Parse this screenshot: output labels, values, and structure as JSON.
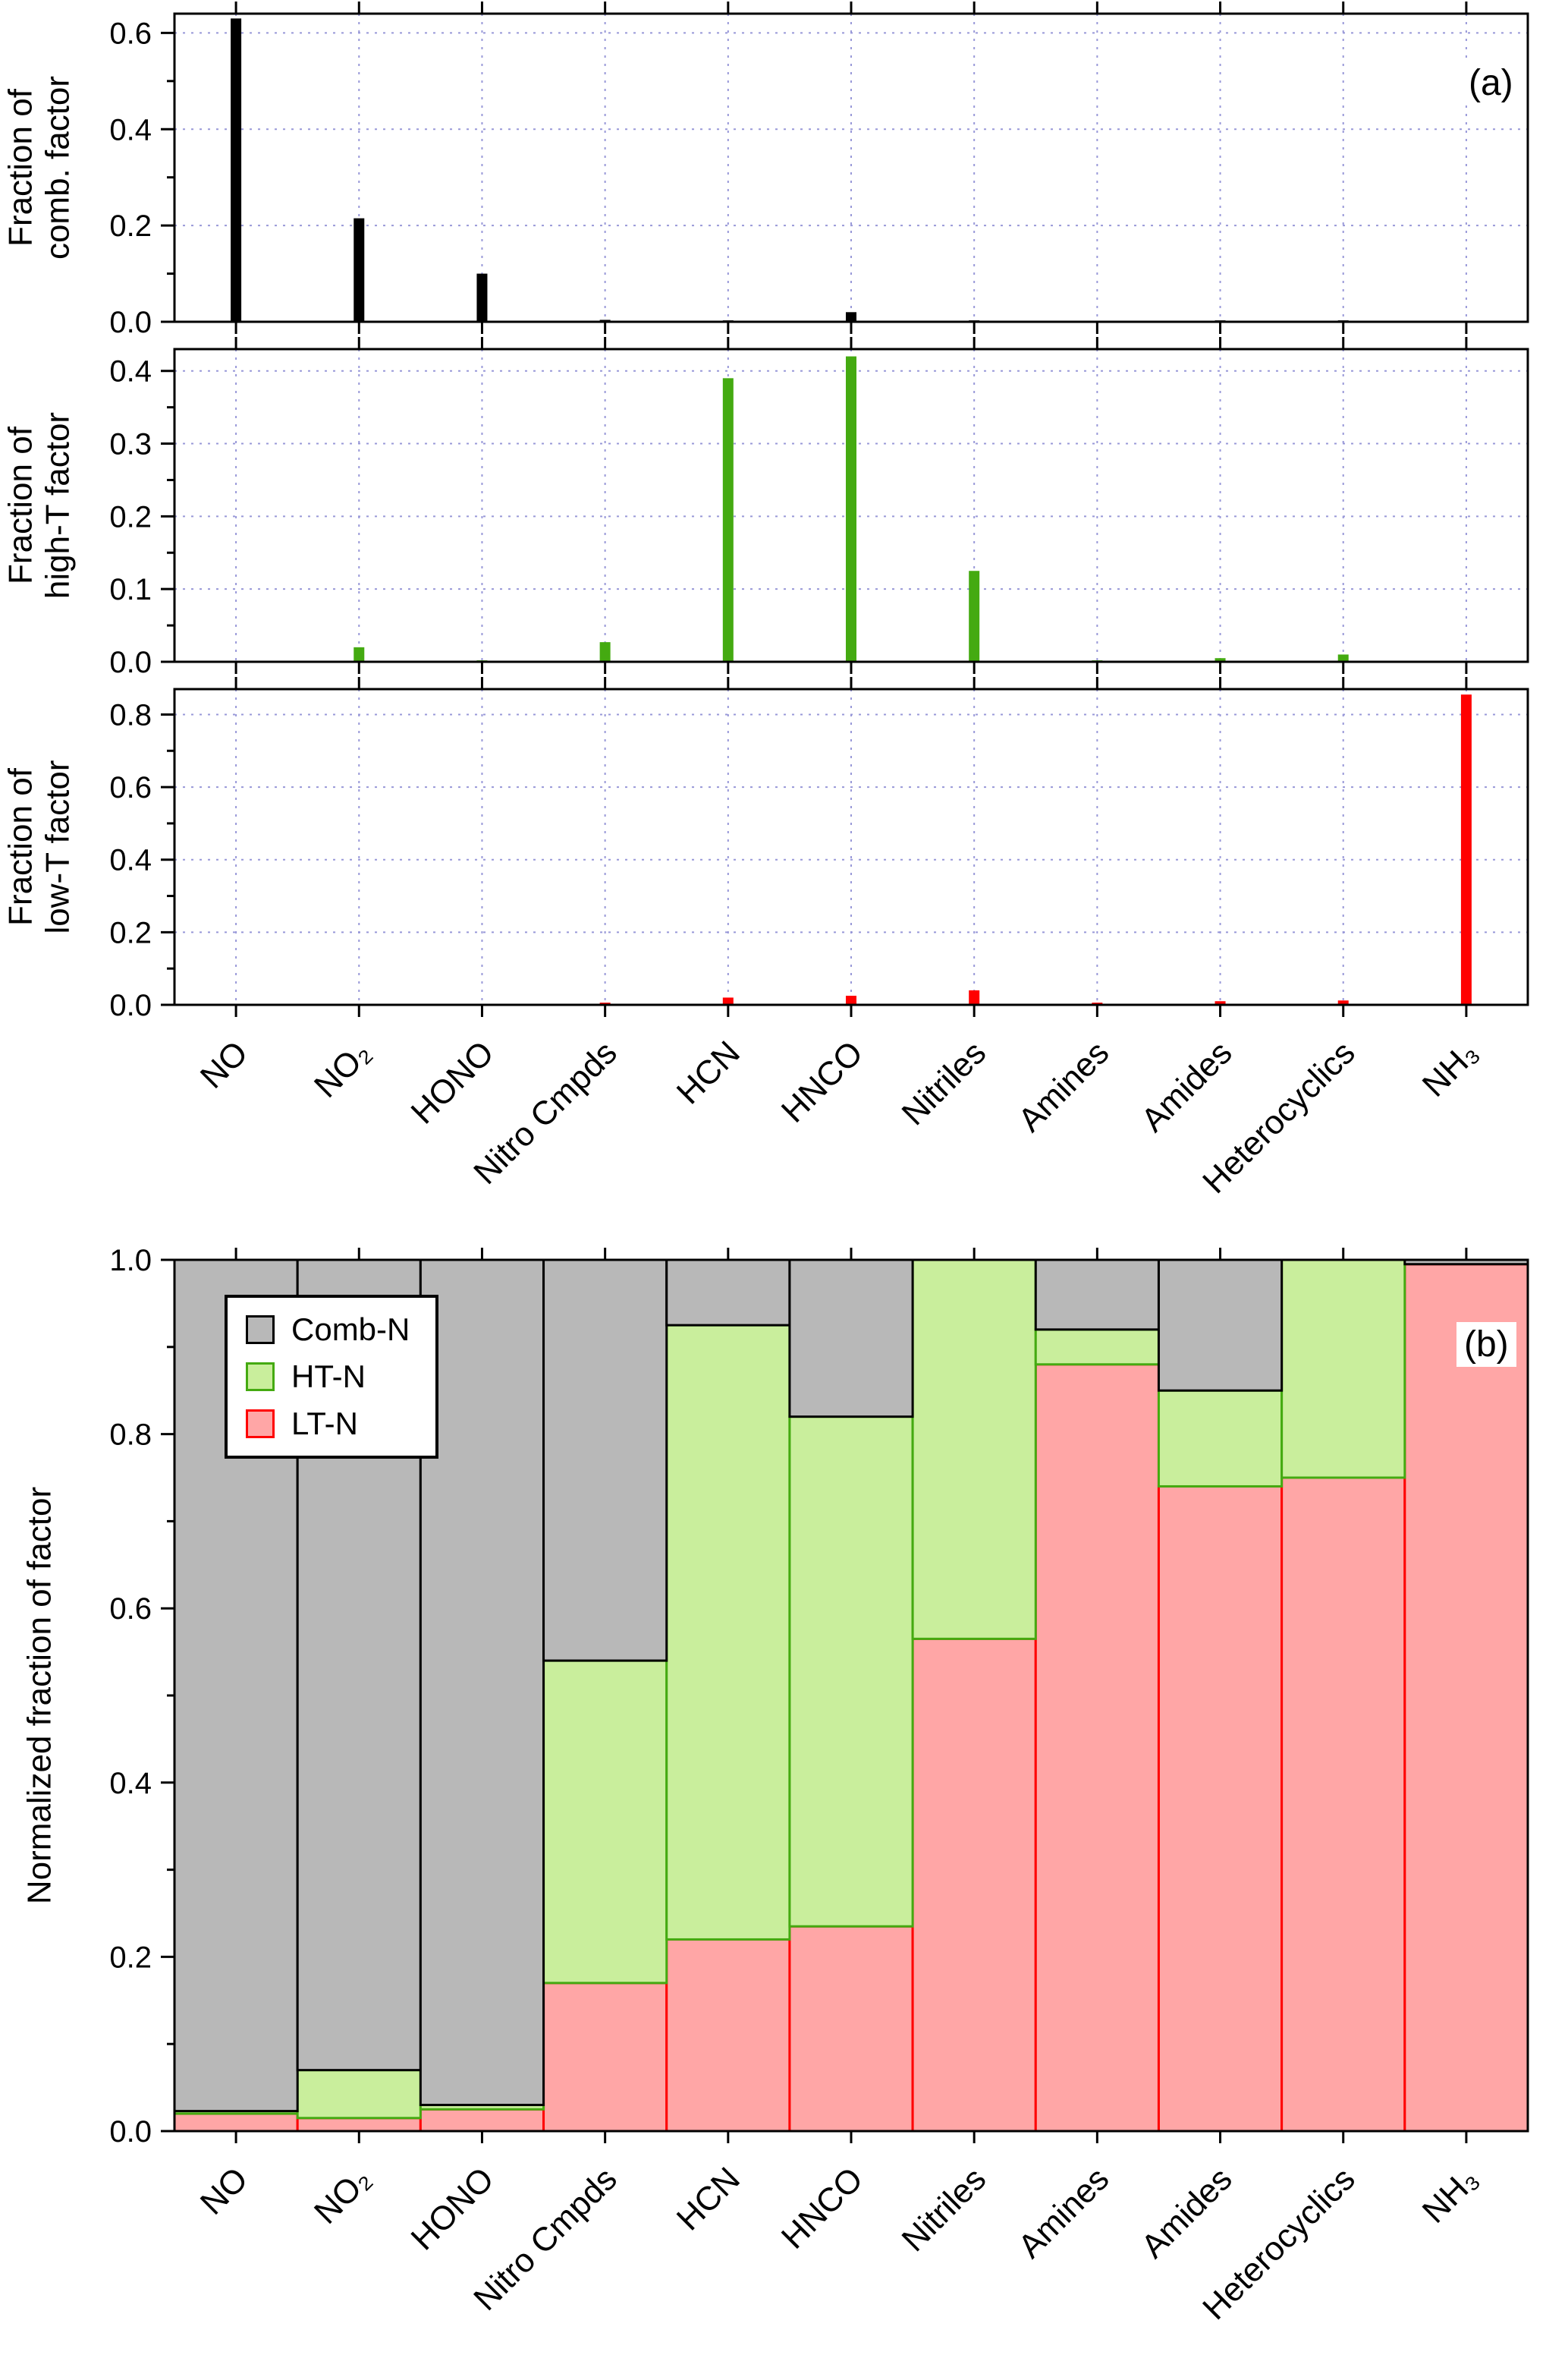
{
  "figure": {
    "panel_a_tag": "(a)",
    "panel_b_tag": "(b)",
    "background": "#ffffff",
    "axis_color": "#000000",
    "grid_color": "#9898d8"
  },
  "categories": [
    "NO",
    "NO₂",
    "HONO",
    "Nitro Cmpds",
    "HCN",
    "HNCO",
    "Nitriles",
    "Amines",
    "Amides",
    "Heterocyclics",
    "NH₃"
  ],
  "chart_data": [
    {
      "id": "comb_fraction",
      "panel": "a-top",
      "type": "bar",
      "title": "",
      "xlabel": "",
      "ylabel": "Fraction of\ncomb. factor",
      "bar_color": "#000000",
      "ylim": [
        0,
        0.64
      ],
      "yticks": [
        0.0,
        0.2,
        0.4,
        0.6
      ],
      "grid": true,
      "categories": [
        "NO",
        "NO₂",
        "HONO",
        "Nitro Cmpds",
        "HCN",
        "HNCO",
        "Nitriles",
        "Amines",
        "Amides",
        "Heterocyclics",
        "NH₃"
      ],
      "values": [
        0.63,
        0.215,
        0.1,
        0.004,
        0.003,
        0.02,
        0.003,
        0.002,
        0.003,
        0.003,
        0.002
      ]
    },
    {
      "id": "highT_fraction",
      "panel": "a-middle",
      "type": "bar",
      "title": "",
      "xlabel": "",
      "ylabel": "Fraction of\nhigh-T factor",
      "bar_color": "#44aa11",
      "ylim": [
        0,
        0.43
      ],
      "yticks": [
        0.0,
        0.1,
        0.2,
        0.3,
        0.4
      ],
      "grid": true,
      "categories": [
        "NO",
        "NO₂",
        "HONO",
        "Nitro Cmpds",
        "HCN",
        "HNCO",
        "Nitriles",
        "Amines",
        "Amides",
        "Heterocyclics",
        "NH₃"
      ],
      "values": [
        0.0,
        0.02,
        0.002,
        0.027,
        0.39,
        0.42,
        0.125,
        0.002,
        0.005,
        0.01,
        0.001
      ]
    },
    {
      "id": "lowT_fraction",
      "panel": "a-bottom",
      "type": "bar",
      "title": "",
      "xlabel": "",
      "ylabel": "Fraction of\nlow-T factor",
      "bar_color": "#ff0000",
      "ylim": [
        0,
        0.87
      ],
      "yticks": [
        0.0,
        0.2,
        0.4,
        0.6,
        0.8
      ],
      "grid": true,
      "categories": [
        "NO",
        "NO₂",
        "HONO",
        "Nitro Cmpds",
        "HCN",
        "HNCO",
        "Nitriles",
        "Amines",
        "Amides",
        "Heterocyclics",
        "NH₃"
      ],
      "values": [
        0.002,
        0.002,
        0.003,
        0.006,
        0.02,
        0.025,
        0.04,
        0.006,
        0.01,
        0.012,
        0.855
      ]
    },
    {
      "id": "normalized_stacked",
      "panel": "b",
      "type": "stacked-bar",
      "title": "",
      "xlabel": "",
      "ylabel": "Normalized fraction of factor",
      "ylim": [
        0,
        1.0
      ],
      "yticks": [
        0.0,
        0.2,
        0.4,
        0.6,
        0.8,
        1.0
      ],
      "grid": true,
      "legend_position": "upper-left",
      "categories": [
        "NO",
        "NO₂",
        "HONO",
        "Nitro Cmpds",
        "HCN",
        "HNCO",
        "Nitriles",
        "Amines",
        "Amides",
        "Heterocyclics",
        "NH₃"
      ],
      "series": [
        {
          "name": "LT-N",
          "fill": "#ffa6a6",
          "border": "#ff0000",
          "values": [
            0.02,
            0.015,
            0.025,
            0.17,
            0.22,
            0.235,
            0.565,
            0.88,
            0.74,
            0.75,
            0.995
          ]
        },
        {
          "name": "HT-N",
          "fill": "#c9ee9c",
          "border": "#44aa11",
          "values": [
            0.003,
            0.055,
            0.005,
            0.37,
            0.705,
            0.585,
            0.435,
            0.04,
            0.11,
            0.25,
            0.0
          ]
        },
        {
          "name": "Comb-N",
          "fill": "#b8b8b8",
          "border": "#000000",
          "values": [
            0.977,
            0.93,
            0.97,
            0.46,
            0.075,
            0.18,
            0.0,
            0.08,
            0.15,
            0.0,
            0.005
          ]
        }
      ]
    }
  ],
  "legend": {
    "items": [
      {
        "label": "Comb-N",
        "fill": "#b8b8b8",
        "border": "#000000"
      },
      {
        "label": "HT-N",
        "fill": "#c9ee9c",
        "border": "#44aa11"
      },
      {
        "label": "LT-N",
        "fill": "#ffa6a6",
        "border": "#ff0000"
      }
    ]
  }
}
